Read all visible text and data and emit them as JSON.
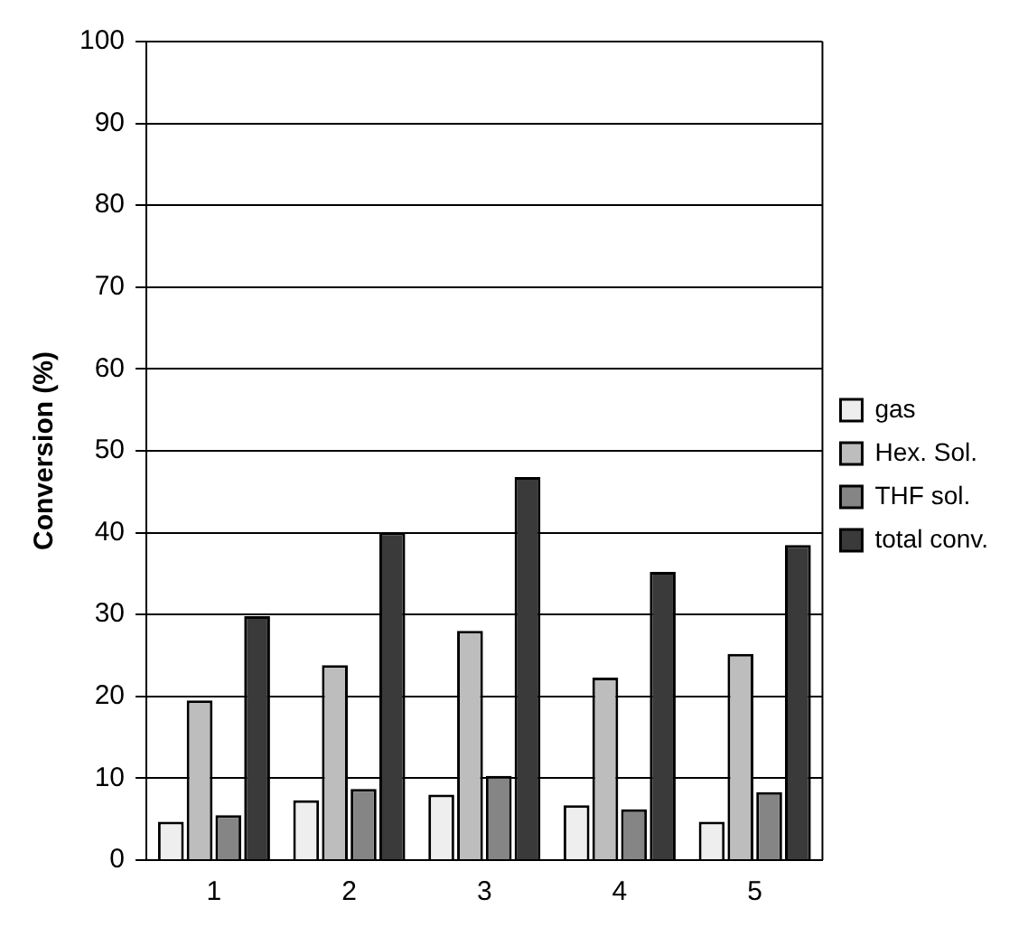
{
  "chart_data": {
    "type": "bar",
    "ylabel": "Conversion (%)",
    "categories": [
      "1",
      "2",
      "3",
      "4",
      "5"
    ],
    "series": [
      {
        "name": "gas",
        "color": "#eeeeee",
        "values": [
          4.7,
          7.3,
          8.0,
          6.7,
          4.7
        ]
      },
      {
        "name": "Hex. Sol.",
        "color": "#bdbdbd",
        "values": [
          19.5,
          23.8,
          28.0,
          22.3,
          25.2
        ]
      },
      {
        "name": "THF sol.",
        "color": "#858585",
        "values": [
          5.5,
          8.7,
          10.3,
          6.2,
          8.3
        ]
      },
      {
        "name": "total conv.",
        "color": "#3a3a3a",
        "values": [
          29.8,
          40.0,
          46.8,
          35.2,
          38.5
        ]
      }
    ],
    "ylim": [
      0,
      100
    ],
    "yticks": [
      0,
      10,
      20,
      30,
      40,
      50,
      60,
      70,
      80,
      90,
      100
    ],
    "grid": "y",
    "legend": "right"
  }
}
